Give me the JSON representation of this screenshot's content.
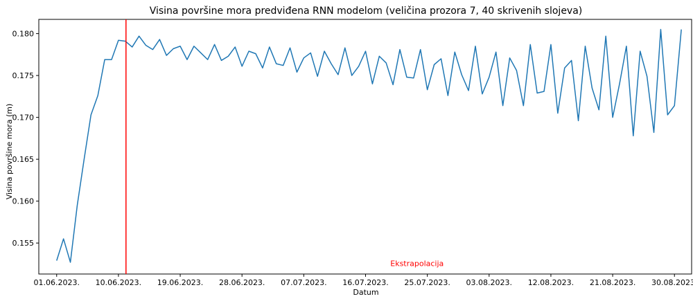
{
  "chart_data": {
    "type": "line",
    "title": "Visina površine mora predviđena RNN modelom (veličina prozora 7, 40 skrivenih slojeva)",
    "xlabel": "Datum",
    "ylabel": "Visina površine mora (m)",
    "x_start_date": "2023-06-01",
    "x_ticks": [
      "01.06.2023.",
      "10.06.2023.",
      "19.06.2023.",
      "28.06.2023.",
      "07.07.2023.",
      "16.07.2023.",
      "25.07.2023.",
      "03.08.2023.",
      "12.08.2023.",
      "21.08.2023.",
      "30.08.2023."
    ],
    "xlim": [
      -2.6,
      92.5
    ],
    "ylim": [
      0.1513,
      0.1817
    ],
    "y_ticks": [
      0.155,
      0.16,
      0.165,
      0.17,
      0.175,
      0.18
    ],
    "y_tick_labels": [
      "0.155",
      "0.160",
      "0.165",
      "0.170",
      "0.175",
      "0.180"
    ],
    "vline": {
      "x": 10.1,
      "color": "#ff0000"
    },
    "annotation": {
      "text": "Ekstrapolacija",
      "x": 52.5,
      "y": 0.1526,
      "color": "#ff0000"
    },
    "series": [
      {
        "color": "#1f77b4",
        "values": [
          0.1529,
          0.1555,
          0.1527,
          0.1595,
          0.165,
          0.1703,
          0.1726,
          0.1769,
          0.1769,
          0.1792,
          0.1791,
          0.1784,
          0.1797,
          0.1786,
          0.1781,
          0.1793,
          0.1774,
          0.1782,
          0.1785,
          0.1769,
          0.1785,
          0.1777,
          0.1769,
          0.1787,
          0.1768,
          0.1773,
          0.1784,
          0.1761,
          0.1779,
          0.1776,
          0.1759,
          0.1784,
          0.1764,
          0.1762,
          0.1783,
          0.1754,
          0.1771,
          0.1777,
          0.1749,
          0.1779,
          0.1764,
          0.1751,
          0.1783,
          0.175,
          0.1761,
          0.1779,
          0.174,
          0.1773,
          0.1765,
          0.1739,
          0.1781,
          0.1748,
          0.1747,
          0.1781,
          0.1733,
          0.1763,
          0.177,
          0.1726,
          0.1778,
          0.1751,
          0.1732,
          0.1785,
          0.1728,
          0.1748,
          0.1778,
          0.1714,
          0.1771,
          0.1756,
          0.1714,
          0.1787,
          0.1729,
          0.1731,
          0.1787,
          0.1705,
          0.1759,
          0.1768,
          0.1696,
          0.1785,
          0.1735,
          0.1709,
          0.1797,
          0.17,
          0.174,
          0.1785,
          0.1678,
          0.1779,
          0.1749,
          0.1682,
          0.1805,
          0.1703,
          0.1714,
          0.1805
        ]
      }
    ]
  }
}
